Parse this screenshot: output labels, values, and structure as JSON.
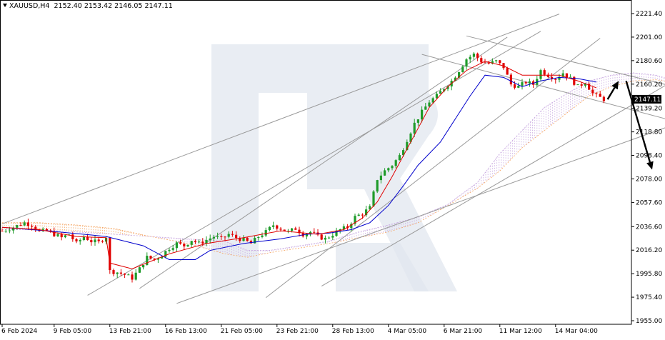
{
  "header": {
    "symbol": "XAUUSD,H4",
    "open": "2152.40",
    "high": "2153.42",
    "low": "2146.05",
    "close": "2147.11"
  },
  "colors": {
    "bull": "#1f9b2a",
    "bear": "#e00000",
    "tenkan": "#e00000",
    "kijun": "#0000cc",
    "cloud_up": "#f4a460",
    "cloud_down": "#c8a8e0",
    "trendline": "#9a9a9a",
    "arrow": "#000000",
    "watermark": "#dfe5ee"
  },
  "chart_data": {
    "type": "candlestick",
    "title": "",
    "xlabel": "",
    "ylabel": "",
    "ylim": [
      1955.0,
      2231.0
    ],
    "price_ticks": [
      "2221.40",
      "2201.00",
      "2180.60",
      "2160.20",
      "2139.20",
      "2118.80",
      "2098.40",
      "2078.00",
      "2057.60",
      "2036.60",
      "2016.20",
      "1995.80",
      "1975.40",
      "1955.00"
    ],
    "time_labels": [
      "6 Feb 2024",
      "9 Feb 05:00",
      "13 Feb 21:00",
      "16 Feb 13:00",
      "21 Feb 05:00",
      "23 Feb 21:00",
      "28 Feb 13:00",
      "4 Mar 05:00",
      "6 Mar 21:00",
      "11 Mar 12:00",
      "14 Mar 04:00"
    ],
    "time_label_bar_index": [
      0,
      14,
      29,
      44,
      59,
      74,
      89,
      104,
      119,
      134,
      149
    ],
    "current_price": "2147.11",
    "close_path": [
      [
        0,
        2033
      ],
      [
        3,
        2036
      ],
      [
        6,
        2040
      ],
      [
        8,
        2038
      ],
      [
        10,
        2032
      ],
      [
        12,
        2033
      ],
      [
        14,
        2030
      ],
      [
        16,
        2027
      ],
      [
        18,
        2030
      ],
      [
        20,
        2022
      ],
      [
        22,
        2028
      ],
      [
        24,
        2024
      ],
      [
        26,
        2023
      ],
      [
        28,
        2028
      ],
      [
        29,
        1998
      ],
      [
        31,
        1997
      ],
      [
        33,
        1995
      ],
      [
        35,
        1992
      ],
      [
        37,
        2000
      ],
      [
        39,
        2010
      ],
      [
        41,
        2008
      ],
      [
        43,
        2012
      ],
      [
        45,
        2018
      ],
      [
        47,
        2022
      ],
      [
        49,
        2020
      ],
      [
        51,
        2025
      ],
      [
        53,
        2022
      ],
      [
        55,
        2025
      ],
      [
        57,
        2028
      ],
      [
        59,
        2026
      ],
      [
        61,
        2030
      ],
      [
        63,
        2027
      ],
      [
        65,
        2025
      ],
      [
        67,
        2022
      ],
      [
        69,
        2028
      ],
      [
        71,
        2032
      ],
      [
        73,
        2038
      ],
      [
        75,
        2035
      ],
      [
        77,
        2032
      ],
      [
        79,
        2035
      ],
      [
        81,
        2030
      ],
      [
        83,
        2032
      ],
      [
        85,
        2028
      ],
      [
        87,
        2026
      ],
      [
        89,
        2030
      ],
      [
        91,
        2034
      ],
      [
        93,
        2036
      ],
      [
        95,
        2045
      ],
      [
        97,
        2048
      ],
      [
        99,
        2053
      ],
      [
        101,
        2078
      ],
      [
        103,
        2085
      ],
      [
        105,
        2090
      ],
      [
        107,
        2098
      ],
      [
        109,
        2112
      ],
      [
        111,
        2126
      ],
      [
        113,
        2136
      ],
      [
        115,
        2145
      ],
      [
        117,
        2150
      ],
      [
        119,
        2157
      ],
      [
        121,
        2163
      ],
      [
        123,
        2172
      ],
      [
        125,
        2182
      ],
      [
        127,
        2186
      ],
      [
        129,
        2180
      ],
      [
        131,
        2178
      ],
      [
        133,
        2180
      ],
      [
        135,
        2175
      ],
      [
        137,
        2160
      ],
      [
        139,
        2158
      ],
      [
        141,
        2162
      ],
      [
        143,
        2160
      ],
      [
        145,
        2172
      ],
      [
        147,
        2168
      ],
      [
        149,
        2165
      ],
      [
        151,
        2170
      ],
      [
        153,
        2165
      ],
      [
        155,
        2158
      ],
      [
        157,
        2162
      ],
      [
        159,
        2152
      ],
      [
        160,
        2150
      ],
      [
        162,
        2147
      ]
    ],
    "tenkan_path": [
      [
        0,
        2036
      ],
      [
        10,
        2034
      ],
      [
        20,
        2028
      ],
      [
        28,
        2027
      ],
      [
        29,
        2005
      ],
      [
        35,
        2000
      ],
      [
        45,
        2013
      ],
      [
        55,
        2022
      ],
      [
        65,
        2027
      ],
      [
        75,
        2033
      ],
      [
        85,
        2030
      ],
      [
        92,
        2034
      ],
      [
        97,
        2044
      ],
      [
        101,
        2058
      ],
      [
        105,
        2080
      ],
      [
        110,
        2110
      ],
      [
        115,
        2140
      ],
      [
        120,
        2158
      ],
      [
        125,
        2172
      ],
      [
        130,
        2180
      ],
      [
        135,
        2176
      ],
      [
        140,
        2168
      ],
      [
        145,
        2168
      ],
      [
        150,
        2168
      ],
      [
        155,
        2163
      ],
      [
        160,
        2157
      ]
    ],
    "kijun_path": [
      [
        0,
        2036
      ],
      [
        12,
        2033
      ],
      [
        22,
        2030
      ],
      [
        28,
        2028
      ],
      [
        38,
        2020
      ],
      [
        45,
        2008
      ],
      [
        52,
        2008
      ],
      [
        56,
        2016
      ],
      [
        65,
        2022
      ],
      [
        75,
        2026
      ],
      [
        82,
        2030
      ],
      [
        88,
        2031
      ],
      [
        94,
        2034
      ],
      [
        99,
        2040
      ],
      [
        104,
        2055
      ],
      [
        108,
        2072
      ],
      [
        112,
        2090
      ],
      [
        118,
        2110
      ],
      [
        122,
        2130
      ],
      [
        126,
        2150
      ],
      [
        130,
        2168
      ],
      [
        135,
        2166
      ],
      [
        140,
        2158
      ],
      [
        145,
        2163
      ],
      [
        150,
        2166
      ],
      [
        155,
        2165
      ],
      [
        160,
        2162
      ]
    ],
    "cloud_senkou_a": [
      [
        0,
        2040
      ],
      [
        10,
        2040
      ],
      [
        20,
        2038
      ],
      [
        30,
        2035
      ],
      [
        40,
        2028
      ],
      [
        50,
        2022
      ],
      [
        60,
        2013
      ],
      [
        66,
        2010
      ],
      [
        72,
        2014
      ],
      [
        80,
        2018
      ],
      [
        88,
        2022
      ],
      [
        96,
        2027
      ],
      [
        104,
        2032
      ],
      [
        112,
        2040
      ],
      [
        120,
        2055
      ],
      [
        128,
        2070
      ],
      [
        134,
        2085
      ],
      [
        140,
        2105
      ],
      [
        146,
        2120
      ],
      [
        152,
        2135
      ],
      [
        158,
        2150
      ],
      [
        164,
        2158
      ],
      [
        170,
        2163
      ],
      [
        176,
        2164
      ],
      [
        180,
        2162
      ]
    ],
    "cloud_senkou_b": [
      [
        0,
        2034
      ],
      [
        10,
        2034
      ],
      [
        20,
        2032
      ],
      [
        30,
        2030
      ],
      [
        40,
        2028
      ],
      [
        50,
        2026
      ],
      [
        60,
        2024
      ],
      [
        66,
        2016
      ],
      [
        72,
        2016
      ],
      [
        80,
        2020
      ],
      [
        88,
        2024
      ],
      [
        96,
        2032
      ],
      [
        104,
        2038
      ],
      [
        112,
        2045
      ],
      [
        120,
        2056
      ],
      [
        128,
        2075
      ],
      [
        134,
        2100
      ],
      [
        140,
        2120
      ],
      [
        146,
        2140
      ],
      [
        152,
        2152
      ],
      [
        158,
        2163
      ],
      [
        164,
        2168
      ],
      [
        170,
        2170
      ],
      [
        176,
        2168
      ],
      [
        180,
        2164
      ]
    ],
    "trendlines": [
      [
        [
          0,
          2039
        ],
        [
          150,
          2221
        ]
      ],
      [
        [
          23,
          1977
        ],
        [
          145,
          2206
        ]
      ],
      [
        [
          37,
          1983
        ],
        [
          136,
          2201
        ]
      ],
      [
        [
          71,
          1975
        ],
        [
          161,
          2200
        ]
      ],
      [
        [
          86,
          1985
        ],
        [
          203,
          2205
        ]
      ],
      [
        [
          47,
          1970
        ],
        [
          211,
          2160
        ]
      ],
      [
        [
          125,
          2202
        ],
        [
          200,
          2143
        ]
      ],
      [
        [
          113,
          2186
        ],
        [
          187,
          2123
        ]
      ]
    ],
    "arrows": [
      [
        [
          163,
          2147
        ],
        [
          166,
          2163
        ]
      ],
      [
        [
          168,
          2163
        ],
        [
          175,
          2086
        ]
      ]
    ],
    "legend": "none",
    "grid": false
  }
}
